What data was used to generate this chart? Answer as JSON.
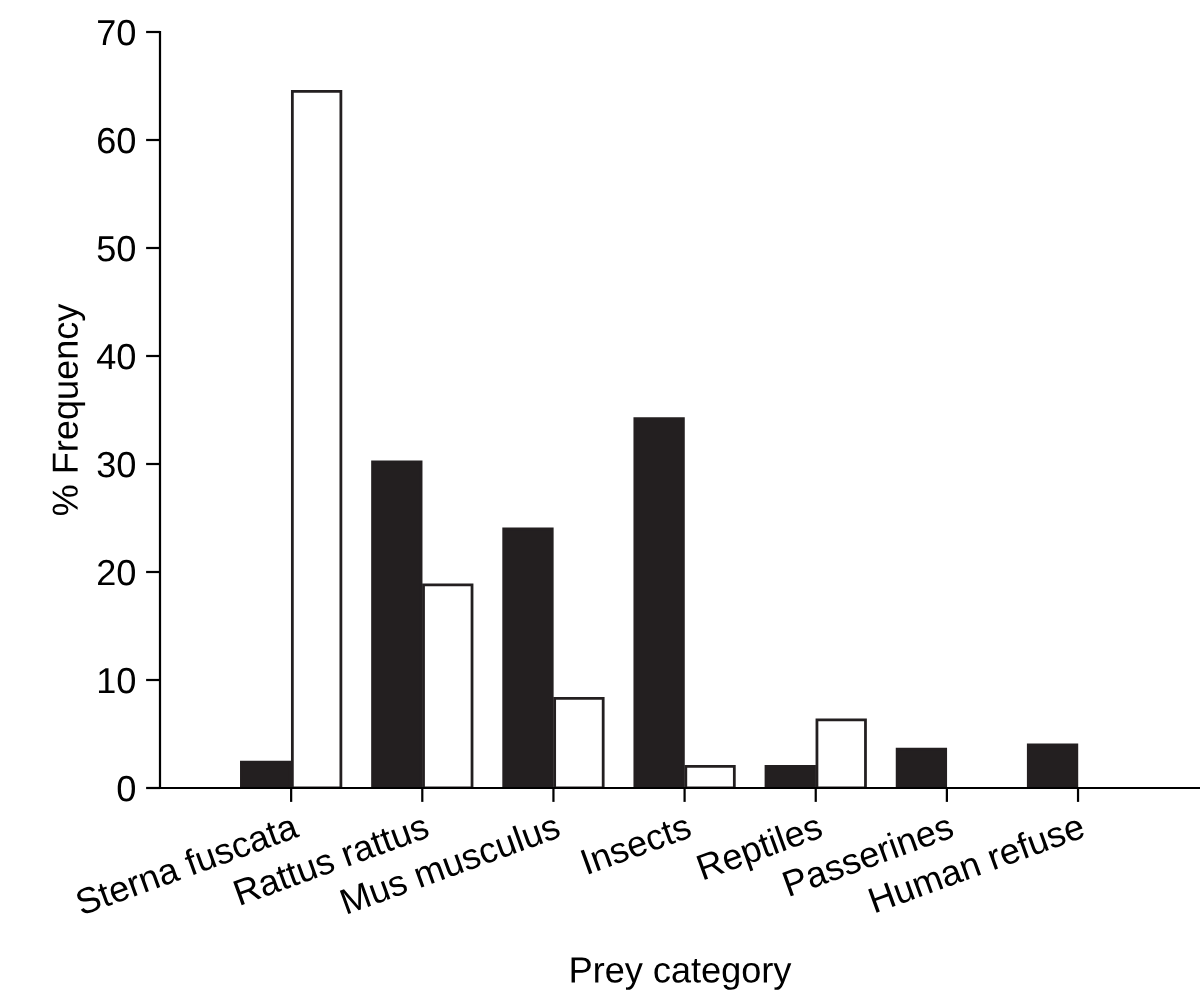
{
  "chart_data": {
    "type": "bar",
    "xlabel": "Prey category",
    "ylabel": "% Frequency",
    "categories": [
      "Sterna fuscata",
      "Rattus rattus",
      "Mus musculus",
      "Insects",
      "Reptiles",
      "Passerines",
      "Human refuse"
    ],
    "series": [
      {
        "color": "#231f20",
        "values": [
          2.4,
          30.2,
          24,
          34.2,
          2,
          3.6,
          4
        ]
      },
      {
        "color": "#ffffff",
        "values": [
          64.5,
          18.8,
          8.3,
          2,
          6.3,
          null,
          null
        ]
      }
    ],
    "ylim": [
      0,
      70
    ],
    "yticks": [
      0,
      10,
      20,
      30,
      40,
      50,
      60,
      70
    ],
    "grid": false,
    "legend": false
  }
}
